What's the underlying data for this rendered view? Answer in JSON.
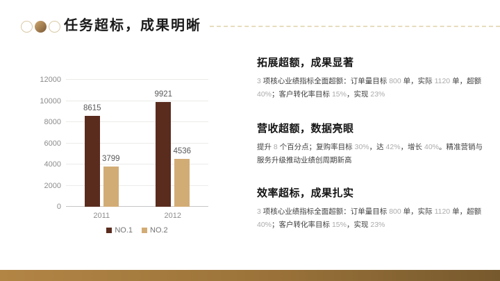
{
  "header": {
    "title": "任务超标，成果明晰"
  },
  "chart_data": {
    "type": "bar",
    "title": "",
    "categories": [
      "2011",
      "2012"
    ],
    "series": [
      {
        "name": "NO.1",
        "color": "#5a2c1e",
        "values": [
          8615,
          9921
        ]
      },
      {
        "name": "NO.2",
        "color": "#d2ac75",
        "values": [
          3799,
          4536
        ]
      }
    ],
    "xlabel": "",
    "ylabel": "",
    "ylim": [
      0,
      12000
    ],
    "yticks": [
      0,
      2000,
      4000,
      6000,
      8000,
      10000,
      12000
    ],
    "grid": true,
    "data_labels": true,
    "legend_position": "bottom"
  },
  "sections": [
    {
      "heading": "拓展超额，成果显著",
      "body": [
        {
          "text": "3 ",
          "muted": true
        },
        {
          "text": "项核心业绩指标全面超额：订单量目标 ",
          "muted": false
        },
        {
          "text": "800",
          "muted": true
        },
        {
          "text": " 单，实际 ",
          "muted": false
        },
        {
          "text": "1120",
          "muted": true
        },
        {
          "text": " 单，超额 ",
          "muted": false
        },
        {
          "text": "40%",
          "muted": true
        },
        {
          "text": "；客户转化率目标 ",
          "muted": false
        },
        {
          "text": "15%",
          "muted": true
        },
        {
          "text": "，实现 ",
          "muted": false
        },
        {
          "text": "23%",
          "muted": true
        }
      ]
    },
    {
      "heading": "营收超额，数据亮眼",
      "body": [
        {
          "text": "提升 ",
          "muted": false
        },
        {
          "text": "8",
          "muted": true
        },
        {
          "text": " 个百分点；复购率目标 ",
          "muted": false
        },
        {
          "text": "30%",
          "muted": true
        },
        {
          "text": "，达 ",
          "muted": false
        },
        {
          "text": "42%",
          "muted": true
        },
        {
          "text": "，增长 ",
          "muted": false
        },
        {
          "text": "40%",
          "muted": true
        },
        {
          "text": "。精准营销与服务升级推动业绩创周期新高",
          "muted": false
        }
      ]
    },
    {
      "heading": "效率超标，成果扎实",
      "body": [
        {
          "text": "3 ",
          "muted": true
        },
        {
          "text": "项核心业绩指标全面超额：订单量目标 ",
          "muted": false
        },
        {
          "text": "800",
          "muted": true
        },
        {
          "text": " 单，实际 ",
          "muted": false
        },
        {
          "text": "1120",
          "muted": true
        },
        {
          "text": " 单，超额 ",
          "muted": false
        },
        {
          "text": "40%",
          "muted": true
        },
        {
          "text": "；客户转化率目标 ",
          "muted": false
        },
        {
          "text": "15%",
          "muted": true
        },
        {
          "text": "，实现 ",
          "muted": false
        },
        {
          "text": "23%",
          "muted": true
        }
      ]
    }
  ],
  "colors": {
    "accent_dark": "#5a2c1e",
    "accent_tan": "#d2ac75",
    "footer_gradient_left": "#b28545",
    "footer_gradient_right": "#76592d",
    "dashed_line": "#e7dcbd"
  }
}
